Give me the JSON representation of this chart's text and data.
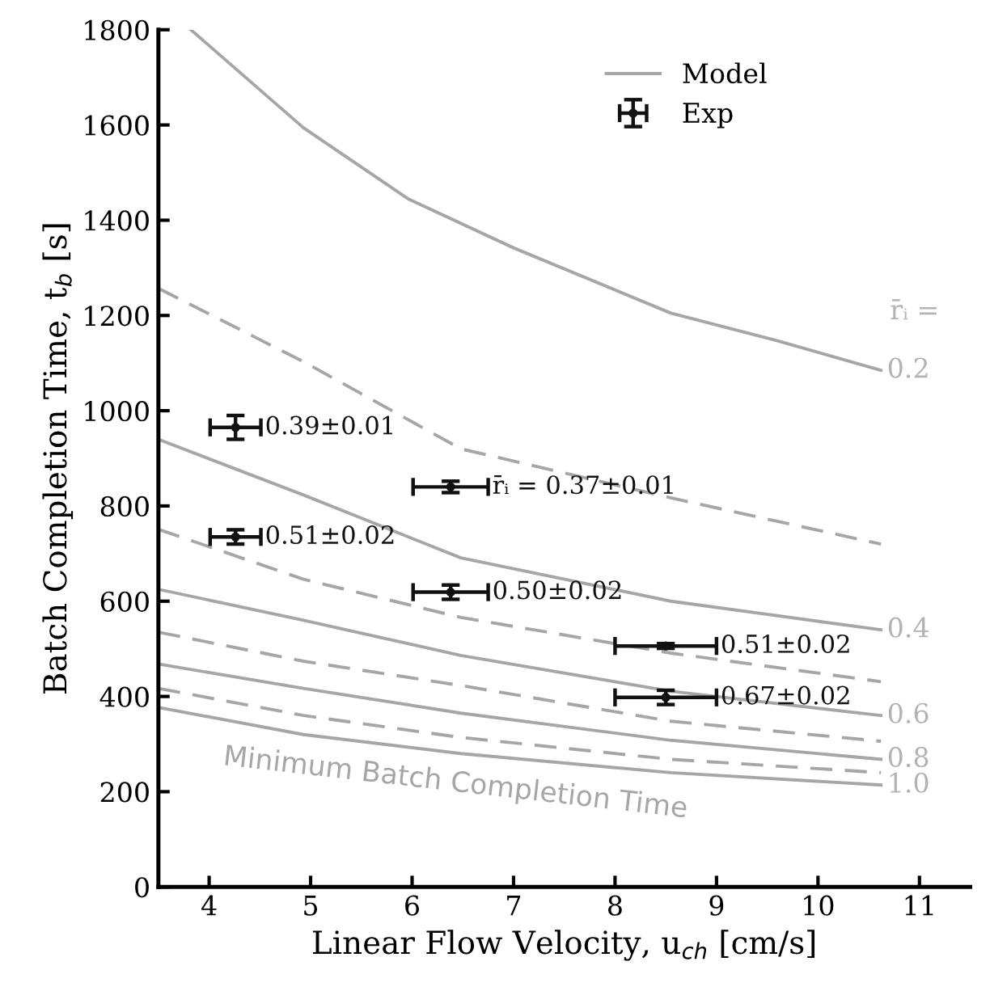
{
  "chart_data": {
    "type": "line",
    "xlabel": "Linear Flow Velocity, u$_{ch}$ [cm/s]",
    "ylabel": "Batch Completion Time, t$_{b}$ [s]",
    "xlim": [
      3.5,
      11.5
    ],
    "xticks": [
      4,
      5,
      6,
      7,
      8,
      9,
      10,
      11
    ],
    "ylim": [
      0,
      1800
    ],
    "yticks": [
      0,
      200,
      400,
      600,
      800,
      1000,
      1200,
      1400,
      1600,
      1800
    ],
    "legend": "top right",
    "series": [
      {
        "name": "Model",
        "line_style": "solid",
        "color": "#a6a6a6",
        "x": [
          3.82,
          4.93,
          5.96,
          7.0,
          8.55,
          9.58,
          10.62
        ],
        "values": [
          1800,
          1594,
          1445,
          1342,
          1205,
          1148,
          1085
        ]
      },
      {
        "type": "line",
        "line_style": "dashed",
        "color": "#a6a6a6",
        "x": [
          3.5,
          4.93,
          6.48,
          8.55,
          10.62
        ],
        "values": [
          1257,
          1103,
          920,
          817,
          720
        ]
      },
      {
        "type": "line",
        "line_style": "solid",
        "color": "#a6a6a6",
        "x": [
          3.5,
          4.93,
          6.48,
          8.55,
          10.62
        ],
        "values": [
          940,
          823,
          691,
          600,
          540
        ]
      },
      {
        "type": "line",
        "line_style": "dashed",
        "color": "#a6a6a6",
        "x": [
          3.5,
          4.93,
          6.48,
          8.55,
          10.62
        ],
        "values": [
          751,
          646,
          566,
          491,
          431
        ]
      },
      {
        "type": "line",
        "line_style": "solid",
        "color": "#a6a6a6",
        "x": [
          3.5,
          4.93,
          6.48,
          8.55,
          10.62
        ],
        "values": [
          625,
          560,
          486,
          411,
          360
        ]
      },
      {
        "type": "line",
        "line_style": "dashed",
        "color": "#a6a6a6",
        "x": [
          3.5,
          4.93,
          6.48,
          8.55,
          10.62
        ],
        "values": [
          535,
          474,
          423,
          348,
          306
        ]
      },
      {
        "type": "line",
        "line_style": "solid",
        "color": "#a6a6a6",
        "x": [
          3.5,
          4.93,
          6.48,
          8.55,
          10.62
        ],
        "values": [
          468,
          417,
          365,
          308,
          268
        ]
      },
      {
        "type": "line",
        "line_style": "dashed",
        "color": "#a6a6a6",
        "x": [
          3.5,
          4.93,
          6.48,
          8.55,
          10.62
        ],
        "values": [
          417,
          360,
          314,
          268,
          240
        ]
      },
      {
        "type": "line",
        "line_style": "solid",
        "color": "#a6a6a6",
        "x": [
          3.5,
          4.93,
          6.48,
          8.55,
          10.62
        ],
        "values": [
          377,
          320,
          280,
          240,
          214
        ]
      },
      {
        "name": "Exp",
        "type": "scatter",
        "marker": "circle",
        "color": "#111111",
        "x": [
          4.26,
          6.38,
          4.26,
          6.38,
          8.5,
          8.5
        ],
        "values": [
          965,
          840,
          735,
          619,
          506,
          398
        ],
        "errors": [
          25,
          12,
          15,
          15,
          5,
          15
        ],
        "xerrors": [
          0.25,
          0.37,
          0.25,
          0.37,
          0.5,
          0.5
        ]
      }
    ],
    "annotations": [
      "r̄ᵢ =",
      "Minimum Batch Completion Time",
      {
        "text": "0.39±0.01",
        "x": 4.26,
        "y": 965
      },
      {
        "text": "r̄ᵢ = 0.37±0.01",
        "x": 6.38,
        "y": 840
      },
      {
        "text": "0.51±0.02",
        "x": 4.26,
        "y": 735
      },
      {
        "text": "0.50±0.02",
        "x": 6.38,
        "y": 619
      },
      {
        "text": "0.51±0.02",
        "x": 8.5,
        "y": 506
      },
      {
        "text": "0.67±0.02",
        "x": 8.5,
        "y": 398
      },
      {
        "text": "0.2",
        "x": 10.62,
        "y": 1085
      },
      {
        "text": "0.4",
        "x": 10.62,
        "y": 540
      },
      {
        "text": "0.6",
        "x": 10.62,
        "y": 360
      },
      {
        "text": "0.8",
        "x": 10.62,
        "y": 268
      },
      {
        "text": "1.0",
        "x": 10.62,
        "y": 214
      }
    ]
  }
}
